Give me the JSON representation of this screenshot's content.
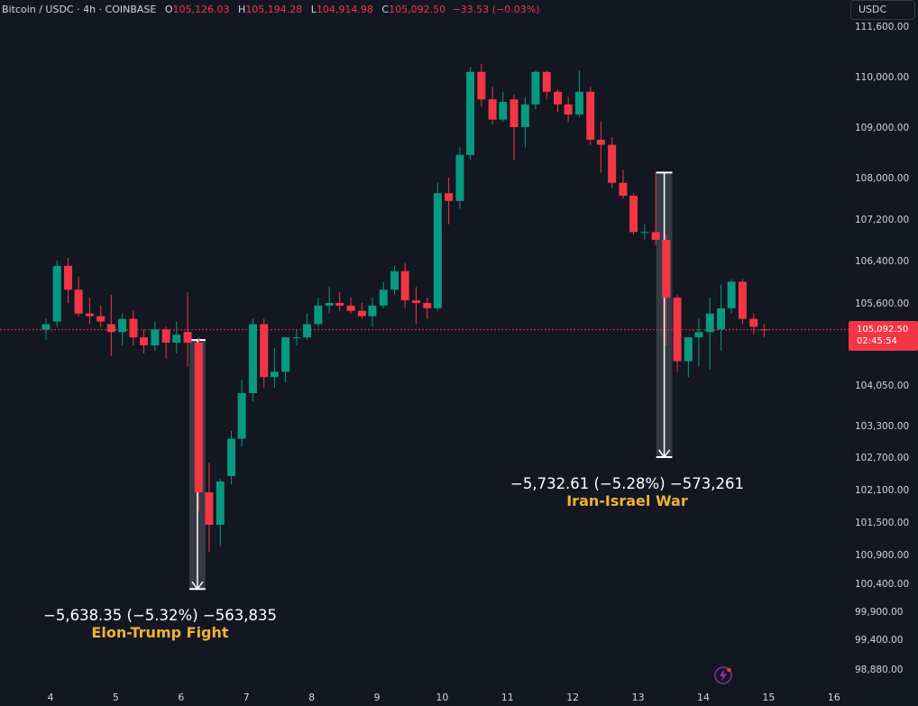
{
  "header": {
    "symbol": "Bitcoin / USDC · 4h · COINBASE",
    "open_key": "O",
    "open": "105,126.03",
    "high_key": "H",
    "high": "105,194.28",
    "low_key": "L",
    "low": "104,914.98",
    "close_key": "C",
    "close": "105,092.50",
    "change": "−33.53 (−0.03%)"
  },
  "currency_button": "USDC",
  "last_price": {
    "value": "105,092.50",
    "countdown": "02:45:54"
  },
  "annotations": [
    {
      "stat": "−5,638.35 (−5.32%) −563,835",
      "label": "Elon-Trump Fight"
    },
    {
      "stat": "−5,732.61 (−5.28%) −573,261",
      "label": "Iran-Israel War"
    }
  ],
  "colors": {
    "background": "#131722",
    "up": "#089981",
    "down": "#f23645",
    "label": "#f0b232",
    "text": "#d1d4dc"
  },
  "icons": {
    "alert": "lightning-bolt-icon"
  },
  "chart_data": {
    "type": "candlestick",
    "symbol": "Bitcoin / USDC",
    "interval": "4h",
    "exchange": "COINBASE",
    "y_ticks": [
      "111,600.00",
      "110,000.00",
      "109,000.00",
      "108,000.00",
      "107,200.00",
      "106,400.00",
      "105,600.00",
      "104,050.00",
      "103,300.00",
      "102,700.00",
      "102,100.00",
      "101,500.00",
      "100,900.00",
      "100,400.00",
      "99,900.00",
      "99,400.00",
      "98,880.00"
    ],
    "x_ticks": [
      "4",
      "5",
      "6",
      "7",
      "8",
      "9",
      "10",
      "11",
      "12",
      "13",
      "14",
      "15",
      "16"
    ],
    "x_tick_days": [
      4,
      5,
      6,
      7,
      8,
      9,
      10,
      11,
      12,
      13,
      14,
      15,
      16
    ],
    "last_price": 105092.5,
    "candles": [
      {
        "t": 3.93,
        "o": 105100,
        "h": 105300,
        "l": 104900,
        "c": 105200
      },
      {
        "t": 4.1,
        "o": 105250,
        "h": 106400,
        "l": 105150,
        "c": 106300
      },
      {
        "t": 4.27,
        "o": 106300,
        "h": 106450,
        "l": 105600,
        "c": 105850
      },
      {
        "t": 4.43,
        "o": 105850,
        "h": 106100,
        "l": 105350,
        "c": 105400
      },
      {
        "t": 4.6,
        "o": 105400,
        "h": 105700,
        "l": 105200,
        "c": 105350
      },
      {
        "t": 4.77,
        "o": 105350,
        "h": 105550,
        "l": 105150,
        "c": 105250
      },
      {
        "t": 4.93,
        "o": 105200,
        "h": 105750,
        "l": 104600,
        "c": 105050
      },
      {
        "t": 5.1,
        "o": 105050,
        "h": 105400,
        "l": 104800,
        "c": 105300
      },
      {
        "t": 5.27,
        "o": 105300,
        "h": 105450,
        "l": 104800,
        "c": 104950
      },
      {
        "t": 5.43,
        "o": 104950,
        "h": 105100,
        "l": 104650,
        "c": 104800
      },
      {
        "t": 5.6,
        "o": 104800,
        "h": 105250,
        "l": 104700,
        "c": 105100
      },
      {
        "t": 5.77,
        "o": 105100,
        "h": 105150,
        "l": 104550,
        "c": 104850
      },
      {
        "t": 5.93,
        "o": 104850,
        "h": 105250,
        "l": 104650,
        "c": 105000
      },
      {
        "t": 6.1,
        "o": 105050,
        "h": 105800,
        "l": 104400,
        "c": 104850
      },
      {
        "t": 6.27,
        "o": 104850,
        "h": 104950,
        "l": 101700,
        "c": 102050
      },
      {
        "t": 6.43,
        "o": 102050,
        "h": 102600,
        "l": 100950,
        "c": 101450
      },
      {
        "t": 6.6,
        "o": 101450,
        "h": 102300,
        "l": 101050,
        "c": 102250
      },
      {
        "t": 6.77,
        "o": 102350,
        "h": 103200,
        "l": 102200,
        "c": 103050
      },
      {
        "t": 6.93,
        "o": 103050,
        "h": 104150,
        "l": 102900,
        "c": 103900
      },
      {
        "t": 7.1,
        "o": 103900,
        "h": 105300,
        "l": 103750,
        "c": 105200
      },
      {
        "t": 7.27,
        "o": 105200,
        "h": 105300,
        "l": 104000,
        "c": 104200
      },
      {
        "t": 7.43,
        "o": 104200,
        "h": 104750,
        "l": 104000,
        "c": 104300
      },
      {
        "t": 7.6,
        "o": 104300,
        "h": 104950,
        "l": 104100,
        "c": 104950
      },
      {
        "t": 7.77,
        "o": 104950,
        "h": 105100,
        "l": 104800,
        "c": 104950
      },
      {
        "t": 7.93,
        "o": 104950,
        "h": 105400,
        "l": 104900,
        "c": 105200
      },
      {
        "t": 8.1,
        "o": 105200,
        "h": 105700,
        "l": 105150,
        "c": 105550
      },
      {
        "t": 8.27,
        "o": 105550,
        "h": 105900,
        "l": 105400,
        "c": 105600
      },
      {
        "t": 8.43,
        "o": 105600,
        "h": 105800,
        "l": 105450,
        "c": 105550
      },
      {
        "t": 8.6,
        "o": 105550,
        "h": 105700,
        "l": 105400,
        "c": 105450
      },
      {
        "t": 8.77,
        "o": 105450,
        "h": 105600,
        "l": 105300,
        "c": 105350
      },
      {
        "t": 8.93,
        "o": 105350,
        "h": 105700,
        "l": 105150,
        "c": 105550
      },
      {
        "t": 9.1,
        "o": 105550,
        "h": 106000,
        "l": 105500,
        "c": 105850
      },
      {
        "t": 9.27,
        "o": 105850,
        "h": 106300,
        "l": 105750,
        "c": 106200
      },
      {
        "t": 9.43,
        "o": 106200,
        "h": 106350,
        "l": 105500,
        "c": 105650
      },
      {
        "t": 9.6,
        "o": 105650,
        "h": 105900,
        "l": 105200,
        "c": 105600
      },
      {
        "t": 9.77,
        "o": 105600,
        "h": 105700,
        "l": 105300,
        "c": 105500
      },
      {
        "t": 9.93,
        "o": 105500,
        "h": 107900,
        "l": 105450,
        "c": 107700
      },
      {
        "t": 10.1,
        "o": 107700,
        "h": 108000,
        "l": 107100,
        "c": 107550
      },
      {
        "t": 10.27,
        "o": 107550,
        "h": 108600,
        "l": 107400,
        "c": 108450
      },
      {
        "t": 10.43,
        "o": 108450,
        "h": 110300,
        "l": 108350,
        "c": 110150
      },
      {
        "t": 10.6,
        "o": 110150,
        "h": 110400,
        "l": 109400,
        "c": 109550
      },
      {
        "t": 10.77,
        "o": 109550,
        "h": 109800,
        "l": 109050,
        "c": 109150
      },
      {
        "t": 10.93,
        "o": 109150,
        "h": 109700,
        "l": 109100,
        "c": 109500
      },
      {
        "t": 11.1,
        "o": 109550,
        "h": 109650,
        "l": 108350,
        "c": 109000
      },
      {
        "t": 11.27,
        "o": 109000,
        "h": 109600,
        "l": 108600,
        "c": 109450
      },
      {
        "t": 11.43,
        "o": 109450,
        "h": 110200,
        "l": 109350,
        "c": 110150
      },
      {
        "t": 11.6,
        "o": 110150,
        "h": 110200,
        "l": 109550,
        "c": 109700
      },
      {
        "t": 11.77,
        "o": 109700,
        "h": 109750,
        "l": 109300,
        "c": 109450
      },
      {
        "t": 11.93,
        "o": 109450,
        "h": 109600,
        "l": 109100,
        "c": 109250
      },
      {
        "t": 12.1,
        "o": 109250,
        "h": 110200,
        "l": 109200,
        "c": 109700
      },
      {
        "t": 12.27,
        "o": 109700,
        "h": 109800,
        "l": 108650,
        "c": 108750
      },
      {
        "t": 12.43,
        "o": 108750,
        "h": 109100,
        "l": 108100,
        "c": 108650
      },
      {
        "t": 12.6,
        "o": 108650,
        "h": 108800,
        "l": 107800,
        "c": 107900
      },
      {
        "t": 12.77,
        "o": 107900,
        "h": 108150,
        "l": 107600,
        "c": 107650
      },
      {
        "t": 12.93,
        "o": 107650,
        "h": 107700,
        "l": 106900,
        "c": 106950
      },
      {
        "t": 13.1,
        "o": 106950,
        "h": 107100,
        "l": 106800,
        "c": 106950
      },
      {
        "t": 13.27,
        "o": 106950,
        "h": 108100,
        "l": 106700,
        "c": 106800
      },
      {
        "t": 13.43,
        "o": 106800,
        "h": 106900,
        "l": 104800,
        "c": 105700
      },
      {
        "t": 13.6,
        "o": 105700,
        "h": 105750,
        "l": 104300,
        "c": 104500
      },
      {
        "t": 13.77,
        "o": 104500,
        "h": 104900,
        "l": 104200,
        "c": 104950
      },
      {
        "t": 13.93,
        "o": 104950,
        "h": 105300,
        "l": 104400,
        "c": 105050
      },
      {
        "t": 14.1,
        "o": 105050,
        "h": 105700,
        "l": 104350,
        "c": 105400
      },
      {
        "t": 14.27,
        "o": 105100,
        "h": 105950,
        "l": 104700,
        "c": 105500
      },
      {
        "t": 14.43,
        "o": 105500,
        "h": 106050,
        "l": 105400,
        "c": 106000
      },
      {
        "t": 14.6,
        "o": 106000,
        "h": 106050,
        "l": 105200,
        "c": 105300
      },
      {
        "t": 14.77,
        "o": 105300,
        "h": 105400,
        "l": 105000,
        "c": 105150
      },
      {
        "t": 14.93,
        "o": 105100,
        "h": 105200,
        "l": 104950,
        "c": 105092.5
      }
    ],
    "measures": [
      {
        "t_start": 6.1,
        "t_end": 6.18,
        "from": 104900,
        "to": 100300
      },
      {
        "t_start": 13.25,
        "t_end": 13.33,
        "from": 108100,
        "to": 102700
      }
    ]
  }
}
